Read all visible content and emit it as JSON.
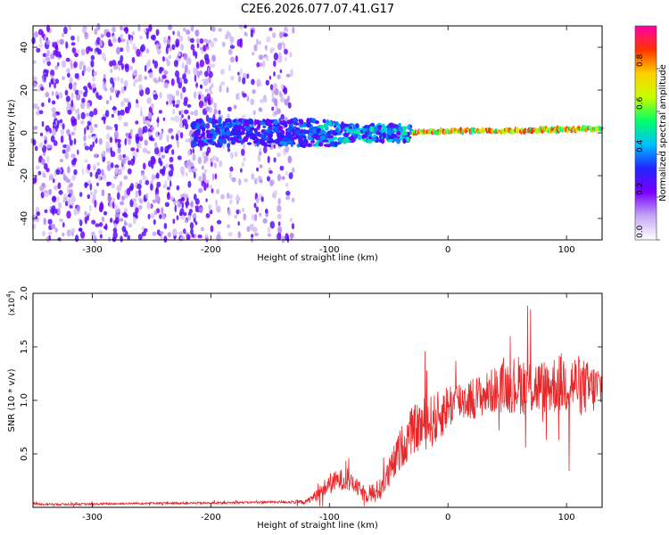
{
  "title": "C2E6.2026.077.07.41.G17",
  "chart_data": [
    {
      "type": "heatmap",
      "title": "C2E6.2026.077.07.41.G17",
      "xlabel": "Height of straight line (km)",
      "ylabel": "Frequency (Hz)",
      "xlim": [
        -350,
        130
      ],
      "ylim": [
        -50,
        50
      ],
      "xticks": [
        -300,
        -200,
        -100,
        0,
        100
      ],
      "yticks": [
        -40,
        -20,
        0,
        20,
        40
      ],
      "colorbar": {
        "label": "Normalized spectral amplitude",
        "range": [
          0.0,
          1.0
        ],
        "ticks": [
          "0.0",
          "0.2",
          "0.4",
          "0.6",
          "0.8"
        ],
        "tick_values": [
          0.0,
          0.2,
          0.4,
          0.6,
          0.8
        ],
        "colors": [
          "#ffffff",
          "#c4a8f4",
          "#7b00ff",
          "#2222ff",
          "#00bfff",
          "#00ff66",
          "#c8ff00",
          "#ffd000",
          "#ff3300",
          "#ff00aa"
        ]
      },
      "signal_regions": [
        {
          "x_start": -350,
          "x_end": -130,
          "description": "broadband noise",
          "amplitude": 0.12
        },
        {
          "x_start": -215,
          "x_end": -30,
          "description": "clustered signal around 0 Hz",
          "amplitude": 0.3
        },
        {
          "x_start": -30,
          "x_end": 130,
          "description": "narrow carrier line at ~1 Hz",
          "amplitude": 0.85
        }
      ],
      "center_frequency": [
        {
          "x": -30,
          "y": 0
        },
        {
          "x": 0,
          "y": 1
        },
        {
          "x": 60,
          "y": 1
        },
        {
          "x": 130,
          "y": 2
        }
      ]
    },
    {
      "type": "line",
      "xlabel": "Height of straight line (km)",
      "ylabel": "SNR (10 * v/v)",
      "scale_label": "(x10",
      "scale_exponent": "4",
      "scale_suffix": ")",
      "xlim": [
        -350,
        130
      ],
      "ylim": [
        0,
        2.0
      ],
      "xticks": [
        -300,
        -200,
        -100,
        0,
        100
      ],
      "yticks": [
        0.5,
        1.0,
        1.5,
        2.0
      ],
      "ytick_labels": [
        "0.5",
        "1.0",
        "1.5",
        "2.0"
      ],
      "color": "#e8272a",
      "series": [
        {
          "name": "SNR",
          "x": [
            -350,
            -300,
            -250,
            -200,
            -150,
            -120,
            -110,
            -100,
            -90,
            -80,
            -70,
            -60,
            -50,
            -40,
            -30,
            -20,
            -10,
            0,
            10,
            20,
            30,
            40,
            50,
            60,
            70,
            80,
            90,
            100,
            110,
            120,
            130
          ],
          "y": [
            0.03,
            0.03,
            0.04,
            0.04,
            0.05,
            0.05,
            0.12,
            0.22,
            0.26,
            0.22,
            0.12,
            0.15,
            0.3,
            0.55,
            0.72,
            0.78,
            0.82,
            0.95,
            1.0,
            1.02,
            1.05,
            1.1,
            1.14,
            1.15,
            1.13,
            1.12,
            1.15,
            1.17,
            1.15,
            1.1,
            1.13
          ],
          "noise": [
            0.01,
            0.01,
            0.01,
            0.01,
            0.01,
            0.02,
            0.06,
            0.1,
            0.1,
            0.08,
            0.08,
            0.1,
            0.15,
            0.2,
            0.22,
            0.25,
            0.25,
            0.22,
            0.2,
            0.2,
            0.2,
            0.22,
            0.25,
            0.28,
            0.28,
            0.26,
            0.28,
            0.3,
            0.28,
            0.25,
            0.22
          ]
        }
      ]
    }
  ]
}
